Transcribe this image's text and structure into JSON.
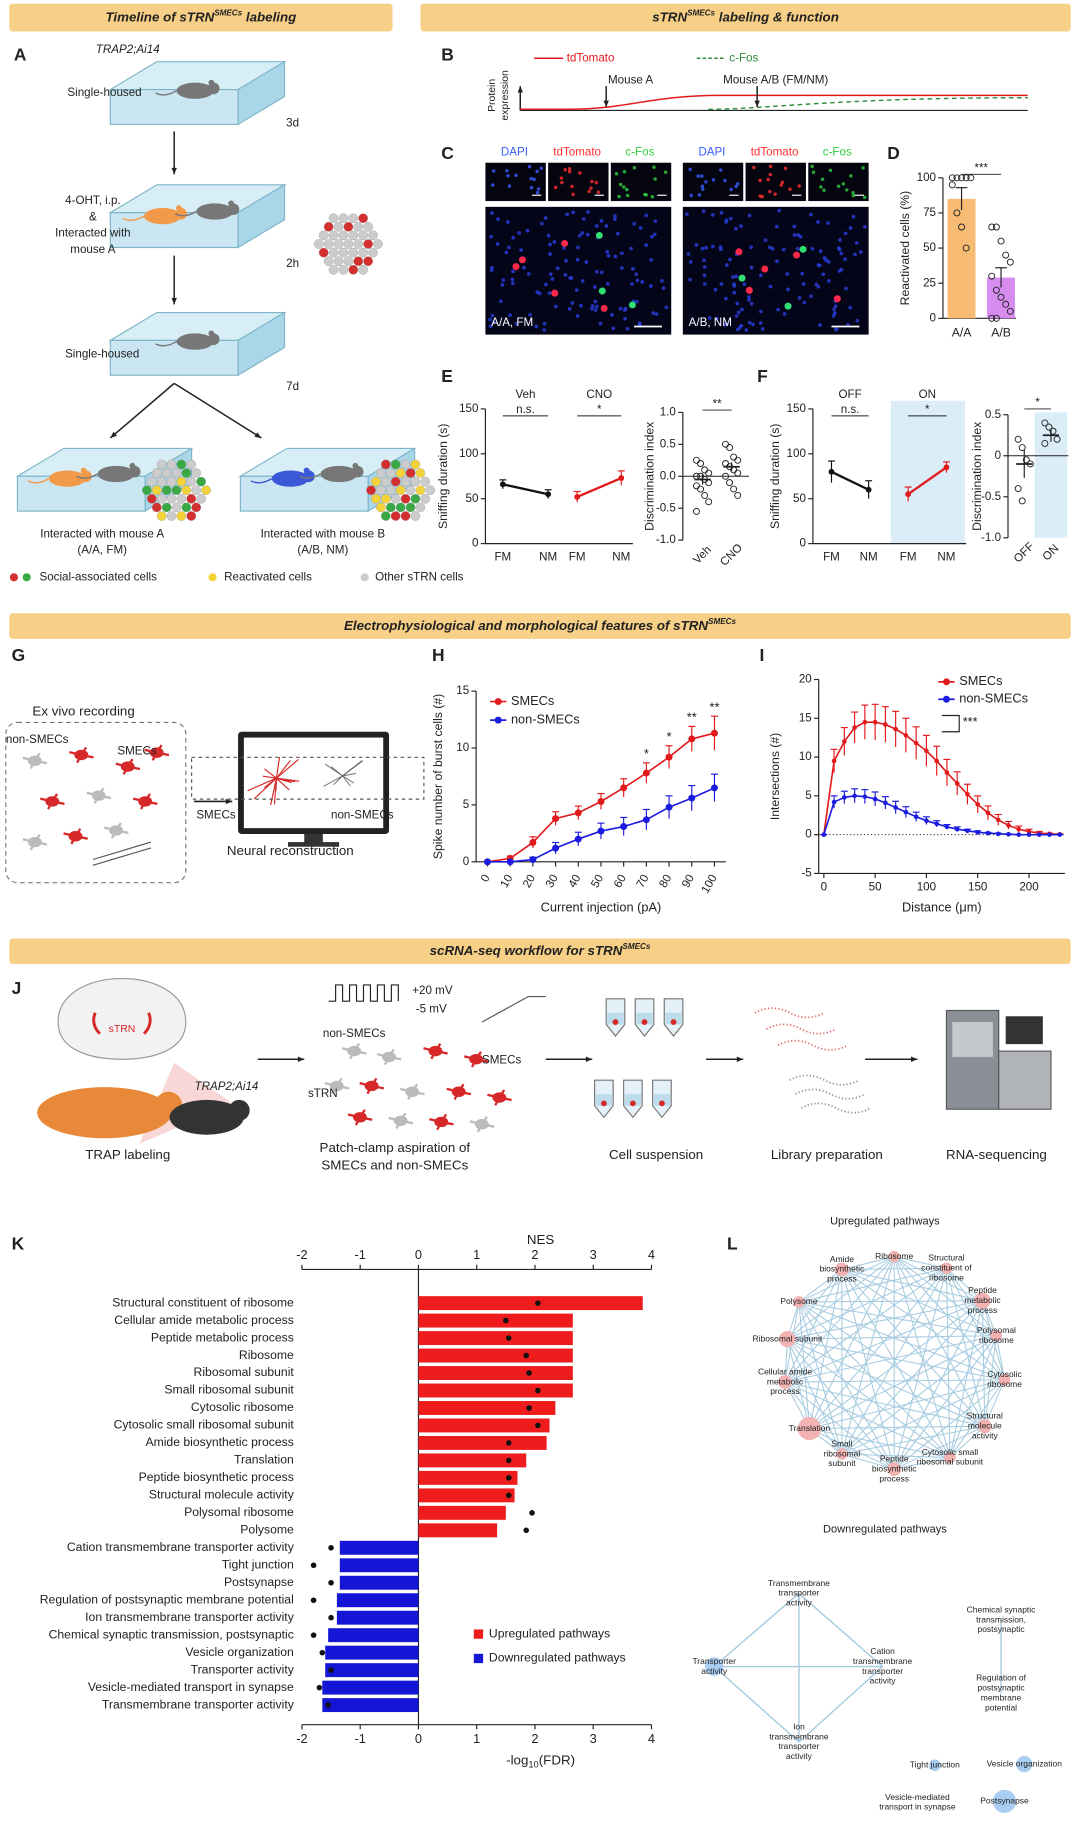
{
  "banners": [
    {
      "text": "Timeline of sTRN",
      "sup": "SMECs",
      "after": " labeling"
    },
    {
      "text": "sTRN",
      "sup": "SMECs",
      "after": " labeling & function"
    },
    {
      "text": "Electrophysiological and morphological features of sTRN",
      "sup": "SMECs"
    },
    {
      "text": "scRNA-seq workflow for sTRN",
      "sup": "SMECs"
    }
  ],
  "panel_letters": [
    "A",
    "B",
    "C",
    "D",
    "E",
    "F",
    "G",
    "H",
    "I",
    "J",
    "K",
    "L"
  ],
  "panel_a": {
    "strain": "TRAP2;Ai14",
    "steps": [
      "Single-housed",
      "4-OHT, i.p.",
      "&",
      "Interacted with",
      "mouse A",
      "Single-housed"
    ],
    "durations": [
      "3d",
      "2h",
      "7d"
    ],
    "outcomes": [
      [
        "Interacted with mouse A",
        "(A/A, FM)"
      ],
      [
        "Interacted with mouse B",
        "(A/B, NM)"
      ]
    ],
    "legend": [
      "Social-associated cells",
      "Reactivated cells",
      "Other sTRN cells"
    ]
  },
  "panel_b": {
    "legend": [
      "tdTomato",
      "c-Fos"
    ],
    "y_label": [
      "Protein",
      "expression"
    ],
    "events": [
      "Mouse A",
      "Mouse A/B (FM/NM)"
    ]
  },
  "panel_c": {
    "channels": [
      "DAPI",
      "tdTomato",
      "c-Fos"
    ],
    "conditions": [
      "A/A, FM",
      "A/B, NM"
    ]
  },
  "panel_g": {
    "title": "Ex vivo recording",
    "cells": [
      "non-SMECs",
      "SMECs"
    ],
    "reconstruction": [
      "SMECs",
      "non-SMECs"
    ],
    "caption": "Neural reconstruction"
  },
  "panel_j": {
    "region": "sTRN",
    "strain": "TRAP2;Ai14",
    "step1": "TRAP labeling",
    "voltages": [
      "+20 mV",
      "-5 mV"
    ],
    "cells": [
      "non-SMECs",
      "SMECs"
    ],
    "region2": "sTRN",
    "step2": [
      "Patch-clamp aspiration of",
      "SMECs and non-SMECs"
    ],
    "step3": "Cell suspension",
    "step4": "Library preparation",
    "step5": "RNA-sequencing"
  },
  "network": {
    "up_title": "Upregulated pathways",
    "up_nodes": [
      [
        "Ribosome"
      ],
      [
        "Structural",
        "constituent of",
        "ribosome"
      ],
      [
        "Peptide",
        "metabolic",
        "process"
      ],
      [
        "Polysomal",
        "ribosome"
      ],
      [
        "Cytosolic",
        "ribosome"
      ],
      [
        "Structural",
        "molecule",
        "activity"
      ],
      [
        "Cytosolic small",
        "ribosomal subunit"
      ],
      [
        "Peptide",
        "biosynthetic",
        "process"
      ],
      [
        "Small",
        "ribosomal",
        "subunit"
      ],
      [
        "Translation"
      ],
      [
        "Cellular amide",
        "metabolic",
        "process"
      ],
      [
        "Ribosomal subunit"
      ],
      [
        "Polysome"
      ],
      [
        "Amide",
        "biosynthetic",
        "process"
      ]
    ],
    "down_title": "Downregulated pathways",
    "down_nodes": [
      [
        "Transmembrane",
        "transporter",
        "activity"
      ],
      [
        "Transporter",
        "activity"
      ],
      [
        "Cation",
        "transmembrane",
        "transporter",
        "activity"
      ],
      [
        "Ion",
        "transmembrane",
        "transporter",
        "activity"
      ],
      [
        "Chemical synaptic",
        "transmission,",
        "postsynaptic"
      ],
      [
        "Regulation of",
        "postsynaptic",
        "membrane",
        "potential"
      ],
      [
        "Tight junction"
      ],
      [
        "Vesicle organization"
      ],
      [
        "Vesicle-mediated",
        "transport in synapse"
      ],
      [
        "Postsynapse"
      ]
    ]
  },
  "chart_data": [
    {
      "type": "bar",
      "y_label": "Reactivated cells (%)",
      "categories": [
        "A/A",
        "A/B"
      ],
      "values": [
        85,
        29
      ],
      "errors": [
        8,
        7
      ],
      "colors": [
        "#f8bb73",
        "#d78cf0"
      ],
      "points": [
        [
          100,
          100,
          100,
          100,
          100,
          95,
          75,
          65,
          50
        ],
        [
          65,
          65,
          55,
          45,
          40,
          30,
          20,
          15,
          10,
          5,
          0,
          0
        ]
      ],
      "ylim": [
        0,
        100
      ],
      "yticks": [
        0,
        25,
        50,
        75,
        100
      ],
      "significance": "***"
    },
    {
      "type": "line",
      "y_label": "Sniffing duration (s)",
      "categories": [
        "FM",
        "NM"
      ],
      "series": [
        {
          "name": "Veh",
          "color": "#111111",
          "values": [
            66,
            55
          ],
          "errors": [
            5,
            5
          ]
        },
        {
          "name": "CNO",
          "color": "#e31a1c",
          "values": [
            52,
            73
          ],
          "errors": [
            6,
            8
          ]
        }
      ],
      "ylim": [
        0,
        150
      ],
      "yticks": [
        0,
        50,
        100,
        150
      ],
      "significance": [
        "n.s.",
        "*"
      ]
    },
    {
      "type": "dot",
      "y_label": "Discrimination index",
      "categories": [
        "Veh",
        "CNO"
      ],
      "values": [
        -0.05,
        0.15
      ],
      "errors": [
        0.08,
        0.07
      ],
      "points": [
        [
          0.25,
          0.2,
          0.1,
          0.05,
          0,
          0,
          -0.05,
          -0.1,
          -0.15,
          -0.2,
          -0.3,
          -0.4,
          -0.55
        ],
        [
          0.5,
          0.45,
          0.3,
          0.25,
          0.2,
          0.15,
          0.1,
          0.05,
          0,
          -0.1,
          -0.2,
          -0.3
        ]
      ],
      "ylim": [
        -1,
        1
      ],
      "yticks": [
        {
          "value": -1,
          "label": "-1.0"
        },
        -0.5,
        {
          "value": 0,
          "label": "0.0"
        },
        0.5,
        {
          "value": 1,
          "label": "1.0"
        }
      ],
      "significance": "**"
    },
    {
      "type": "line",
      "y_label": "Sniffing duration (s)",
      "categories": [
        "FM",
        "NM"
      ],
      "series": [
        {
          "name": "OFF",
          "color": "#111111",
          "values": [
            80,
            60
          ],
          "errors": [
            12,
            10
          ]
        },
        {
          "name": "ON",
          "color": "#e31a1c",
          "values": [
            55,
            85
          ],
          "errors": [
            8,
            6
          ]
        }
      ],
      "ylim": [
        0,
        150
      ],
      "yticks": [
        0,
        50,
        100,
        150
      ],
      "significance": [
        "n.s.",
        "*"
      ]
    },
    {
      "type": "dot",
      "y_label": "Discrimination index",
      "categories": [
        "OFF",
        "ON"
      ],
      "values": [
        -0.1,
        0.25
      ],
      "errors": [
        0.17,
        0.08
      ],
      "points": [
        [
          0.2,
          0.1,
          -0.05,
          -0.1,
          -0.4,
          -0.55
        ],
        [
          0.4,
          0.35,
          0.3,
          0.2,
          0.15
        ]
      ],
      "ylim": [
        -1,
        0.5
      ],
      "yticks": [
        {
          "value": -1,
          "label": "-1.0"
        },
        -0.5,
        0,
        0.5
      ],
      "significance": "*"
    },
    {
      "type": "line",
      "x_label": "Current injection (pA)",
      "y_label": "Spike number of burst cells (#)",
      "x": [
        0,
        10,
        20,
        30,
        40,
        50,
        60,
        70,
        80,
        90,
        100
      ],
      "series": [
        {
          "name": "SMECs",
          "color": "#e31a1c",
          "values": [
            0,
            0.3,
            1.7,
            3.8,
            4.3,
            5.3,
            6.5,
            7.8,
            9.2,
            10.8,
            11.3
          ],
          "errors": [
            0,
            0.2,
            0.5,
            0.6,
            0.6,
            0.7,
            0.8,
            0.9,
            1,
            1.1,
            1.5
          ]
        },
        {
          "name": "non-SMECs",
          "color": "#1c1ce0",
          "values": [
            0,
            0,
            0.2,
            1.2,
            2,
            2.7,
            3.1,
            3.7,
            4.8,
            5.6,
            6.5
          ],
          "errors": [
            0,
            0,
            0.2,
            0.5,
            0.6,
            0.7,
            0.8,
            0.9,
            1,
            1.1,
            1.2
          ]
        }
      ],
      "xlim": [
        -5,
        105
      ],
      "xticks": [
        0,
        10,
        20,
        30,
        40,
        50,
        60,
        70,
        80,
        90,
        100
      ],
      "ylim": [
        0,
        15
      ],
      "yticks": [
        0,
        5,
        10,
        15
      ],
      "significance": [
        null,
        null,
        null,
        null,
        null,
        null,
        null,
        "*",
        "*",
        "**",
        "**"
      ]
    },
    {
      "type": "line",
      "x_label": "Distance (μm)",
      "y_label": "Intersections (#)",
      "x": [
        0,
        10,
        20,
        30,
        40,
        50,
        60,
        70,
        80,
        90,
        100,
        110,
        120,
        130,
        140,
        150,
        160,
        170,
        180,
        190,
        200,
        210,
        220,
        230
      ],
      "series": [
        {
          "name": "SMECs",
          "color": "#e31a1c",
          "values": [
            0,
            9.5,
            12,
            13.8,
            14.5,
            14.5,
            14.2,
            13.6,
            12.8,
            11.8,
            10.8,
            9.5,
            8,
            6.6,
            5.2,
            3.9,
            2.8,
            1.9,
            1.2,
            0.7,
            0.4,
            0.2,
            0.1,
            0.05
          ],
          "errors": [
            0,
            1.5,
            1.8,
            2,
            2.2,
            2.3,
            2.3,
            2.3,
            2.2,
            2.1,
            2,
            1.9,
            1.7,
            1.5,
            1.3,
            1.1,
            0.9,
            0.7,
            0.5,
            0.4,
            0.3,
            0.2,
            0.1,
            0.05
          ]
        },
        {
          "name": "non-SMECs",
          "color": "#1c1ce0",
          "values": [
            0,
            4.2,
            4.8,
            5,
            4.9,
            4.6,
            4.1,
            3.5,
            2.9,
            2.3,
            1.8,
            1.4,
            1,
            0.7,
            0.5,
            0.3,
            0.2,
            0.1,
            0.05,
            0,
            0,
            0,
            0,
            0
          ],
          "errors": [
            0,
            0.8,
            0.8,
            0.9,
            0.9,
            0.9,
            0.8,
            0.8,
            0.7,
            0.6,
            0.5,
            0.4,
            0.3,
            0.3,
            0.2,
            0.2,
            0.1,
            0.1,
            0.05,
            0,
            0,
            0,
            0,
            0
          ]
        }
      ],
      "xlim": [
        -5,
        235
      ],
      "xticks": [
        0,
        50,
        100,
        150,
        200
      ],
      "ylim": [
        -5,
        20
      ],
      "yticks": [
        -5,
        0,
        5,
        10,
        15,
        20
      ],
      "significance": "***"
    },
    {
      "type": "hbar",
      "x_label": {
        "text": "-log",
        "sub": "10",
        "after": "(FDR)"
      },
      "x2_label": "NES",
      "categories": [
        "Structural constituent of ribosome",
        "Cellular amide metabolic process",
        "Peptide metabolic process",
        "Ribosome",
        "Ribosomal subunit",
        "Small ribosomal subunit",
        "Cytosolic ribosome",
        "Cytosolic small ribosomal subunit",
        "Amide biosynthetic process",
        "Translation",
        "Peptide biosynthetic process",
        "Structural molecule activity",
        "Polysomal ribosome",
        "Polysome",
        "Cation transmembrane transporter activity",
        "Tight junction",
        "Postsynapse",
        "Regulation of postsynaptic membrane potential",
        "Ion transmembrane transporter activity",
        "Chemical synaptic transmission, postsynaptic",
        "Vesicle organization",
        "Transporter activity",
        "Vesicle-mediated transport in synapse",
        "Transmembrane transporter activity"
      ],
      "values": [
        3.85,
        2.65,
        2.65,
        2.65,
        2.65,
        2.65,
        2.35,
        2.25,
        2.2,
        1.85,
        1.7,
        1.65,
        1.5,
        1.35,
        -1.35,
        -1.35,
        -1.35,
        -1.4,
        -1.4,
        -1.55,
        -1.6,
        -1.6,
        -1.65,
        -1.65
      ],
      "nes": [
        2.05,
        1.5,
        1.55,
        1.85,
        1.9,
        2.05,
        1.9,
        2.05,
        1.55,
        1.55,
        1.55,
        1.55,
        1.95,
        1.85,
        -1.5,
        -1.8,
        -1.5,
        -1.8,
        -1.5,
        -1.8,
        -1.65,
        -1.5,
        -1.7,
        -1.55
      ],
      "legend": [
        {
          "name": "Upregulated pathways",
          "color": "#ee1c1c"
        },
        {
          "name": "Downregulated pathways",
          "color": "#1515d6"
        }
      ],
      "xlim": [
        -2,
        4
      ],
      "xticks": [
        -2,
        -1,
        0,
        1,
        2,
        3,
        4
      ],
      "x2lim": [
        -2,
        4
      ],
      "x2ticks": [
        -2,
        -1,
        0,
        1,
        2,
        3,
        4
      ]
    }
  ]
}
